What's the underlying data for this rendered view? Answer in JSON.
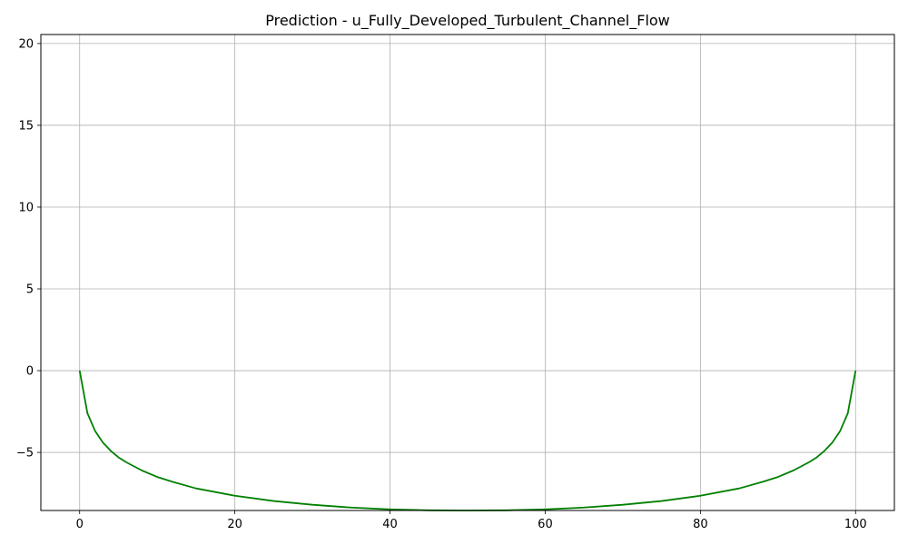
{
  "chart_data": {
    "type": "line",
    "title": "Prediction - u_Fully_Developed_Turbulent_Channel_Flow",
    "xlabel": "",
    "ylabel": "",
    "xlim": [
      -5,
      105
    ],
    "ylim": [
      -8.55,
      20.55
    ],
    "xticks": [
      0,
      20,
      40,
      60,
      80,
      100
    ],
    "yticks": [
      -5,
      0,
      5,
      10,
      15,
      20
    ],
    "grid": true,
    "series": [
      {
        "color": "#008000",
        "x": [
          0,
          1,
          2,
          3,
          4,
          5,
          6,
          8,
          10,
          12,
          15,
          20,
          25,
          30,
          35,
          40,
          45,
          50,
          55,
          60,
          65,
          70,
          75,
          80,
          85,
          88,
          90,
          92,
          94,
          95,
          96,
          97,
          98,
          99,
          100
        ],
        "y": [
          0,
          -2.6,
          -3.7,
          -4.4,
          -4.9,
          -5.3,
          -5.6,
          -6.1,
          -6.5,
          -6.8,
          -7.2,
          -7.65,
          -7.97,
          -8.2,
          -8.37,
          -8.48,
          -8.54,
          -8.55,
          -8.54,
          -8.48,
          -8.37,
          -8.2,
          -7.97,
          -7.65,
          -7.2,
          -6.8,
          -6.5,
          -6.1,
          -5.6,
          -5.3,
          -4.9,
          -4.4,
          -3.7,
          -2.6,
          0
        ]
      }
    ]
  }
}
